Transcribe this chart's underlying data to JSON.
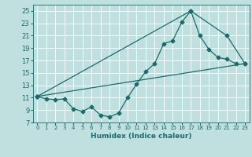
{
  "title": "",
  "xlabel": "Humidex (Indice chaleur)",
  "bg_color": "#c0e0e0",
  "grid_color": "#ffffff",
  "line_color": "#1a6b6b",
  "xlim": [
    -0.5,
    23.5
  ],
  "ylim": [
    7,
    26
  ],
  "yticks": [
    7,
    9,
    11,
    13,
    15,
    17,
    19,
    21,
    23,
    25
  ],
  "xticks": [
    0,
    1,
    2,
    3,
    4,
    5,
    6,
    7,
    8,
    9,
    10,
    11,
    12,
    13,
    14,
    15,
    16,
    17,
    18,
    19,
    20,
    21,
    22,
    23
  ],
  "line1_x": [
    0,
    1,
    2,
    3,
    4,
    5,
    6,
    7,
    8,
    9,
    10,
    11,
    12,
    13,
    14,
    15,
    16,
    17,
    18,
    19,
    20,
    21,
    22
  ],
  "line1_y": [
    11.2,
    10.8,
    10.7,
    10.8,
    9.2,
    8.8,
    9.5,
    8.2,
    7.9,
    8.5,
    11.0,
    13.2,
    15.2,
    16.5,
    19.7,
    20.2,
    23.2,
    25.0,
    21.0,
    18.8,
    17.5,
    17.2,
    16.5
  ],
  "line2_x": [
    0,
    17,
    21,
    23
  ],
  "line2_y": [
    11.2,
    25.0,
    21.0,
    16.5
  ],
  "line3_x": [
    0,
    23
  ],
  "line3_y": [
    11.2,
    16.5
  ]
}
